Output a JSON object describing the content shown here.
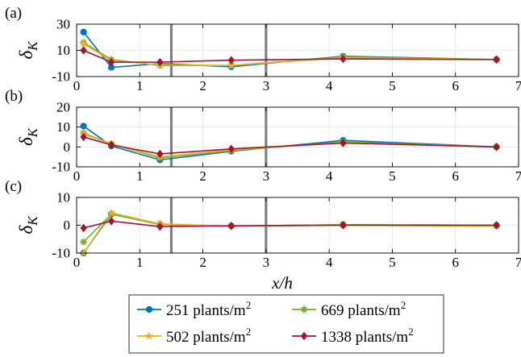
{
  "chart_data": {
    "type": "line",
    "xlabel": "x/h",
    "ylabel": "δK",
    "xlim": [
      0,
      7
    ],
    "x_ticks": [
      "0",
      "1",
      "2",
      "3",
      "4",
      "5",
      "6",
      "7"
    ],
    "grid": true,
    "vertical_markers": [
      1.5,
      3
    ],
    "x": [
      0.11,
      0.55,
      1.32,
      2.45,
      4.22,
      6.65
    ],
    "panels": [
      {
        "label": "(a)",
        "ylim": [
          -10,
          30
        ],
        "y_ticks": [
          "-10",
          "10",
          "30"
        ],
        "y_tick_values": [
          -10,
          10,
          30
        ],
        "series": [
          {
            "name": "251 plants/m2",
            "color": "#0072BD",
            "marker": "circle",
            "values": [
              24,
              -3,
              0,
              -2.5,
              5.5,
              3
            ]
          },
          {
            "name": "669 plants/m2",
            "color": "#77AC30",
            "marker": "asterisk",
            "values": [
              16,
              3,
              -1.5,
              -1.5,
              5,
              3
            ]
          },
          {
            "name": "502 plants/m2",
            "color": "#EDB120",
            "marker": "star",
            "values": [
              15,
              2,
              -1,
              -1.5,
              4.5,
              3
            ]
          },
          {
            "name": "1338 plants/m2",
            "color": "#A2142F",
            "marker": "diamond",
            "values": [
              10,
              1,
              1,
              2.5,
              3.5,
              3
            ]
          }
        ]
      },
      {
        "label": "(b)",
        "ylim": [
          -10,
          20
        ],
        "y_ticks": [
          "-10",
          "0",
          "10",
          "20"
        ],
        "y_tick_values": [
          -10,
          0,
          10,
          20
        ],
        "series": [
          {
            "name": "251 plants/m2",
            "color": "#0072BD",
            "marker": "circle",
            "values": [
              10.5,
              0.5,
              -6.5,
              -2.2,
              3.3,
              0
            ]
          },
          {
            "name": "669 plants/m2",
            "color": "#77AC30",
            "marker": "asterisk",
            "values": [
              7,
              1.5,
              -5.5,
              -1.8,
              2.5,
              0
            ]
          },
          {
            "name": "502 plants/m2",
            "color": "#EDB120",
            "marker": "star",
            "values": [
              6.5,
              1.5,
              -5,
              -1.5,
              2.2,
              0
            ]
          },
          {
            "name": "1338 plants/m2",
            "color": "#A2142F",
            "marker": "diamond",
            "values": [
              5,
              1,
              -3.5,
              -1,
              2,
              0
            ]
          }
        ]
      },
      {
        "label": "(c)",
        "ylim": [
          -10,
          10
        ],
        "y_ticks": [
          "-10",
          "0",
          "10"
        ],
        "y_tick_values": [
          -10,
          0,
          10
        ],
        "series": [
          {
            "name": "251 plants/m2",
            "color": "#0072BD",
            "marker": "circle",
            "values": [
              -10,
              4,
              0.3,
              -0.3,
              0.2,
              0
            ]
          },
          {
            "name": "669 plants/m2",
            "color": "#77AC30",
            "marker": "asterisk",
            "values": [
              -6,
              4,
              0.3,
              -0.3,
              0.2,
              -0.2
            ]
          },
          {
            "name": "502 plants/m2",
            "color": "#EDB120",
            "marker": "star",
            "values": [
              -10,
              4.5,
              0.5,
              -0.3,
              0,
              -0.3
            ]
          },
          {
            "name": "1338 plants/m2",
            "color": "#A2142F",
            "marker": "diamond",
            "values": [
              -1,
              1.5,
              -0.5,
              -0.2,
              0,
              0
            ]
          }
        ]
      }
    ],
    "legend": {
      "placement": "bottom",
      "entries": [
        {
          "label": "251 plants/m",
          "superscript": "2",
          "color": "#0072BD",
          "marker": "circle"
        },
        {
          "label": "669 plants/m",
          "superscript": "2",
          "color": "#77AC30",
          "marker": "asterisk"
        },
        {
          "label": "502 plants/m",
          "superscript": "2",
          "color": "#EDB120",
          "marker": "star"
        },
        {
          "label": "1338 plants/m",
          "superscript": "2",
          "color": "#A2142F",
          "marker": "diamond"
        }
      ]
    }
  }
}
